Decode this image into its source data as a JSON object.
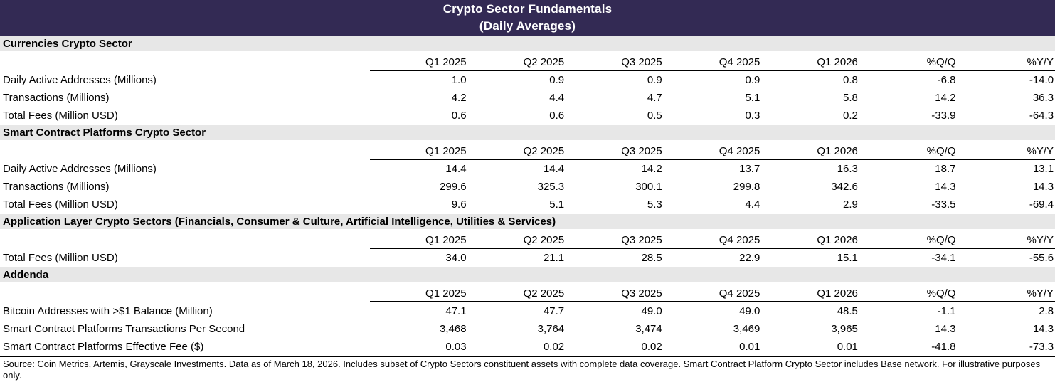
{
  "title": {
    "line1": "Crypto Sector Fundamentals",
    "line2": "(Daily Averages)"
  },
  "colors": {
    "title_bar_bg": "#332a54",
    "title_text": "#ffffff",
    "section_bar_bg": "#e7e7e7",
    "body_text": "#000000",
    "rule_line": "#000000"
  },
  "chart_data": {
    "type": "table",
    "title": "Crypto Sector Fundamentals (Daily Averages)",
    "columns": [
      "Q1 2025",
      "Q2 2025",
      "Q3 2025",
      "Q4 2025",
      "Q1 2026",
      "%Q/Q",
      "%Y/Y"
    ],
    "sections": [
      {
        "name": "Currencies Crypto Sector",
        "rows": [
          {
            "label": "Daily Active Addresses (Millions)",
            "values": [
              "1.0",
              "0.9",
              "0.9",
              "0.9",
              "0.8",
              "-6.8",
              "-14.0"
            ]
          },
          {
            "label": "Transactions (Millions)",
            "values": [
              "4.2",
              "4.4",
              "4.7",
              "5.1",
              "5.8",
              "14.2",
              "36.3"
            ]
          },
          {
            "label": "Total Fees (Million USD)",
            "values": [
              "0.6",
              "0.6",
              "0.5",
              "0.3",
              "0.2",
              "-33.9",
              "-64.3"
            ]
          }
        ]
      },
      {
        "name": "Smart Contract Platforms Crypto Sector",
        "rows": [
          {
            "label": "Daily Active Addresses (Millions)",
            "values": [
              "14.4",
              "14.4",
              "14.2",
              "13.7",
              "16.3",
              "18.7",
              "13.1"
            ]
          },
          {
            "label": "Transactions (Millions)",
            "values": [
              "299.6",
              "325.3",
              "300.1",
              "299.8",
              "342.6",
              "14.3",
              "14.3"
            ]
          },
          {
            "label": "Total Fees (Million USD)",
            "values": [
              "9.6",
              "5.1",
              "5.3",
              "4.4",
              "2.9",
              "-33.5",
              "-69.4"
            ]
          }
        ]
      },
      {
        "name": "Application Layer Crypto Sectors (Financials, Consumer & Culture, Artificial Intelligence, Utilities & Services)",
        "rows": [
          {
            "label": "Total Fees (Million USD)",
            "values": [
              "34.0",
              "21.1",
              "28.5",
              "22.9",
              "15.1",
              "-34.1",
              "-55.6"
            ]
          }
        ]
      },
      {
        "name": "Addenda",
        "rows": [
          {
            "label": "Bitcoin Addresses with >$1 Balance (Million)",
            "values": [
              "47.1",
              "47.7",
              "49.0",
              "49.0",
              "48.5",
              "-1.1",
              "2.8"
            ]
          },
          {
            "label": "Smart Contract Platforms Transactions Per Second",
            "values": [
              "3,468",
              "3,764",
              "3,474",
              "3,469",
              "3,965",
              "14.3",
              "14.3"
            ]
          },
          {
            "label": "Smart Contract Platforms Effective Fee ($)",
            "values": [
              "0.03",
              "0.02",
              "0.02",
              "0.01",
              "0.01",
              "-41.8",
              "-73.3"
            ]
          }
        ]
      }
    ]
  },
  "footer": {
    "source_note": "Source: Coin Metrics, Artemis, Grayscale Investments. Data as of March 18, 2026. Includes subset of Crypto Sectors constituent assets with complete data coverage. Smart Contract Platform Crypto Sector includes Base network. For illustrative purposes only."
  }
}
